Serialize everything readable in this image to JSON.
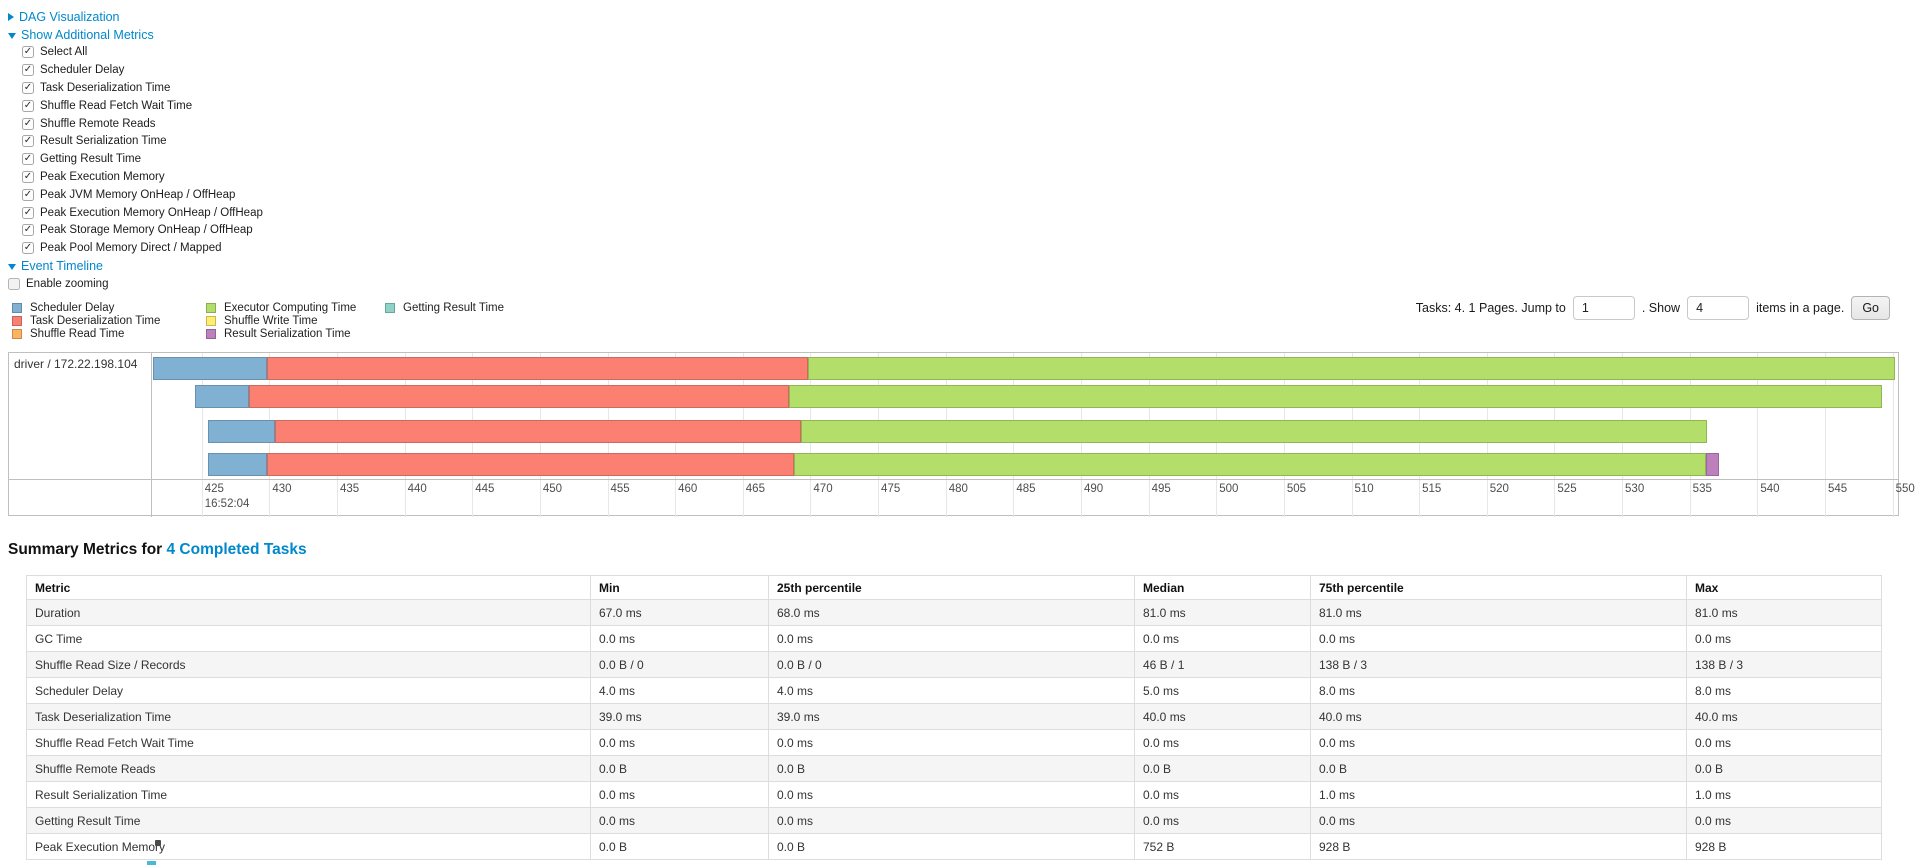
{
  "controls": {
    "dag_label": "DAG Visualization",
    "metrics_label": "Show Additional Metrics",
    "metrics_items": [
      "Select All",
      "Scheduler Delay",
      "Task Deserialization Time",
      "Shuffle Read Fetch Wait Time",
      "Shuffle Remote Reads",
      "Result Serialization Time",
      "Getting Result Time",
      "Peak Execution Memory",
      "Peak JVM Memory OnHeap / OffHeap",
      "Peak Execution Memory OnHeap / OffHeap",
      "Peak Storage Memory OnHeap / OffHeap",
      "Peak Pool Memory Direct / Mapped"
    ],
    "event_timeline_label": "Event Timeline",
    "enable_zooming_label": "Enable zooming"
  },
  "legend": {
    "columns": [
      [
        {
          "label": "Scheduler Delay",
          "color": "#80B1D3"
        },
        {
          "label": "Task Deserialization Time",
          "color": "#FB8072"
        },
        {
          "label": "Shuffle Read Time",
          "color": "#FDB462"
        }
      ],
      [
        {
          "label": "Executor Computing Time",
          "color": "#B3DE69"
        },
        {
          "label": "Shuffle Write Time",
          "color": "#FFED6F"
        },
        {
          "label": "Result Serialization Time",
          "color": "#BC80BD"
        }
      ],
      [
        {
          "label": "Getting Result Time",
          "color": "#8DD3C7"
        }
      ]
    ]
  },
  "pagination": {
    "text_before": "Tasks: 4. 1 Pages. Jump to",
    "jump_value": "1",
    "show_label": ". Show",
    "show_value": "4",
    "text_after": "items in a page.",
    "go_label": "Go"
  },
  "chart_data": {
    "type": "timeline",
    "title": "Event Timeline",
    "group_label": "driver / 172.22.198.104",
    "x_unit": "milliseconds within second 16:52:04",
    "axis": {
      "min": 421.4,
      "max": 550.4,
      "tick_start": 425,
      "tick_end": 550,
      "tick_step": 5,
      "major_label": "16:52:04"
    },
    "colors": {
      "scheduler_delay": "#80B1D3",
      "task_deserialization": "#FB8072",
      "shuffle_read": "#FDB462",
      "executor_computing": "#B3DE69",
      "shuffle_write": "#FFED6F",
      "result_serialization": "#BC80BD",
      "getting_result": "#8DD3C7"
    },
    "tasks": [
      {
        "segments": [
          {
            "type": "scheduler_delay",
            "start": 421.4,
            "end": 429.8
          },
          {
            "type": "task_deserialization",
            "start": 429.8,
            "end": 469.8
          },
          {
            "type": "executor_computing",
            "start": 469.8,
            "end": 550.2
          }
        ]
      },
      {
        "segments": [
          {
            "type": "scheduler_delay",
            "start": 424.5,
            "end": 428.5
          },
          {
            "type": "task_deserialization",
            "start": 428.5,
            "end": 468.4
          },
          {
            "type": "executor_computing",
            "start": 468.4,
            "end": 549.2
          }
        ]
      },
      {
        "segments": [
          {
            "type": "scheduler_delay",
            "start": 425.5,
            "end": 430.4
          },
          {
            "type": "task_deserialization",
            "start": 430.4,
            "end": 469.3
          },
          {
            "type": "executor_computing",
            "start": 469.3,
            "end": 536.3
          }
        ]
      },
      {
        "segments": [
          {
            "type": "scheduler_delay",
            "start": 425.5,
            "end": 429.8
          },
          {
            "type": "task_deserialization",
            "start": 429.8,
            "end": 468.8
          },
          {
            "type": "executor_computing",
            "start": 468.8,
            "end": 536.2
          },
          {
            "type": "result_serialization",
            "start": 536.2,
            "end": 537.2
          }
        ]
      }
    ]
  },
  "summary": {
    "title_prefix": "Summary Metrics for ",
    "title_link": "4 Completed Tasks",
    "columns": [
      "Metric",
      "Min",
      "25th percentile",
      "Median",
      "75th percentile",
      "Max"
    ],
    "rows": [
      [
        "Duration",
        "67.0 ms",
        "68.0 ms",
        "81.0 ms",
        "81.0 ms",
        "81.0 ms"
      ],
      [
        "GC Time",
        "0.0 ms",
        "0.0 ms",
        "0.0 ms",
        "0.0 ms",
        "0.0 ms"
      ],
      [
        "Shuffle Read Size / Records",
        "0.0 B / 0",
        "0.0 B / 0",
        "46 B / 1",
        "138 B / 3",
        "138 B / 3"
      ],
      [
        "Scheduler Delay",
        "4.0 ms",
        "4.0 ms",
        "5.0 ms",
        "8.0 ms",
        "8.0 ms"
      ],
      [
        "Task Deserialization Time",
        "39.0 ms",
        "39.0 ms",
        "40.0 ms",
        "40.0 ms",
        "40.0 ms"
      ],
      [
        "Shuffle Read Fetch Wait Time",
        "0.0 ms",
        "0.0 ms",
        "0.0 ms",
        "0.0 ms",
        "0.0 ms"
      ],
      [
        "Shuffle Remote Reads",
        "0.0 B",
        "0.0 B",
        "0.0 B",
        "0.0 B",
        "0.0 B"
      ],
      [
        "Result Serialization Time",
        "0.0 ms",
        "0.0 ms",
        "0.0 ms",
        "1.0 ms",
        "1.0 ms"
      ],
      [
        "Getting Result Time",
        "0.0 ms",
        "0.0 ms",
        "0.0 ms",
        "0.0 ms",
        "0.0 ms"
      ],
      [
        "Peak Execution Memory",
        "0.0 B",
        "0.0 B",
        "752 B",
        "928 B",
        "928 B"
      ]
    ]
  }
}
